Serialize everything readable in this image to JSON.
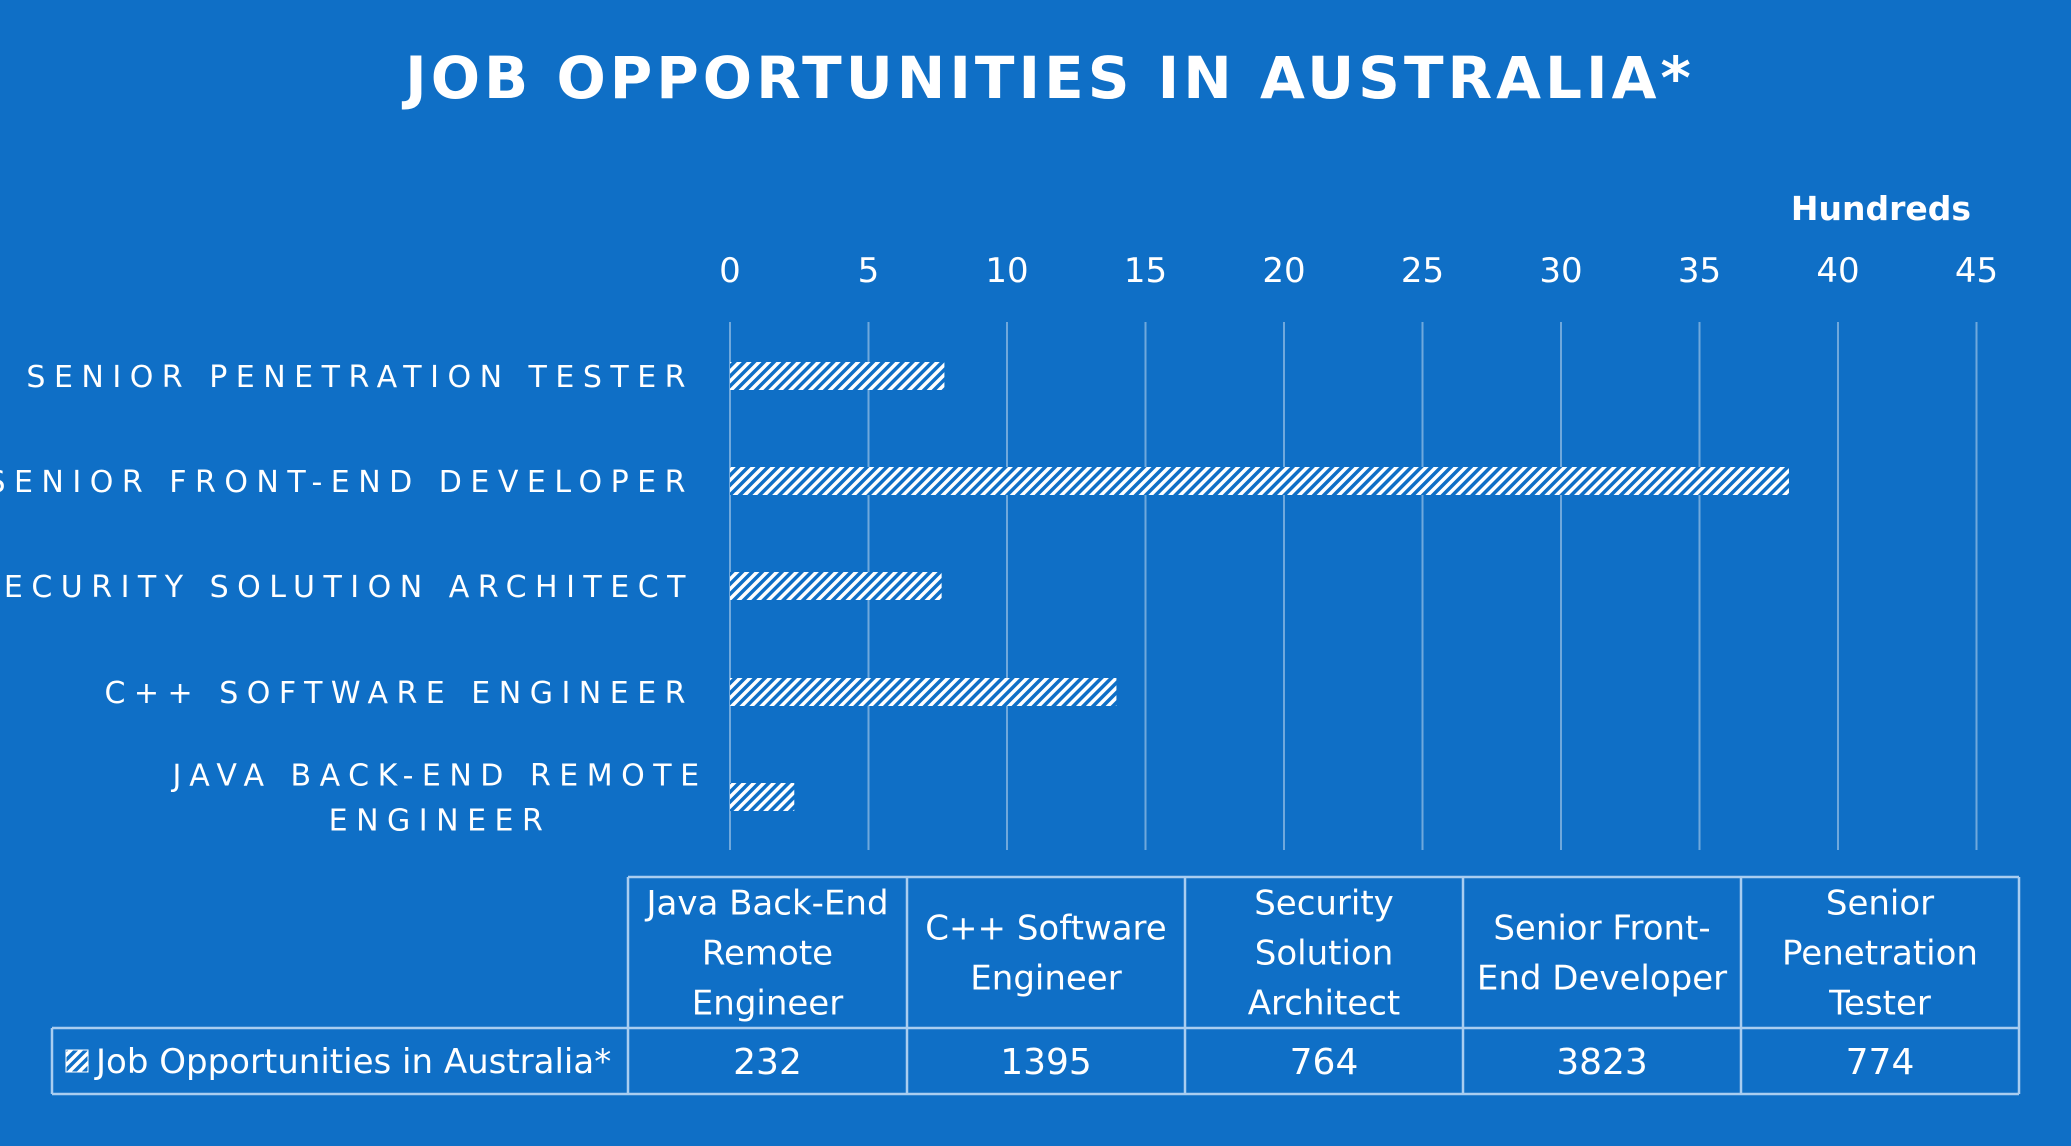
{
  "chart_data": {
    "type": "bar",
    "orientation": "horizontal",
    "title": "JOB OPPORTUNITIES IN AUSTRALIA*",
    "display_units": "Hundreds",
    "categories": [
      "Java Back-End Remote Engineer",
      "C++ Software Engineer",
      "Security Solution Architect",
      "Senior Front-End Developer",
      "Senior Penetration Tester"
    ],
    "category_axis_labels": [
      [
        "JAVA BACK-END REMOTE",
        "ENGINEER"
      ],
      [
        "C++ SOFTWARE ENGINEER"
      ],
      [
        "SECURITY SOLUTION ARCHITECT"
      ],
      [
        "SENIOR FRONT-END DEVELOPER"
      ],
      [
        "SENIOR PENETRATION TESTER"
      ]
    ],
    "series": [
      {
        "name": "Job Opportunities in Australia*",
        "values": [
          232,
          1395,
          764,
          3823,
          774
        ]
      }
    ],
    "value_axis": {
      "ticks": [
        "0",
        "5",
        "10",
        "15",
        "20",
        "25",
        "30",
        "35",
        "40",
        "45"
      ],
      "range_hundreds": [
        0,
        45
      ],
      "position": "top"
    },
    "data_table": {
      "headers": [
        [
          "Java Back-End",
          "Remote",
          "Engineer"
        ],
        [
          "C++ Software",
          "Engineer"
        ],
        [
          "Security",
          "Solution",
          "Architect"
        ],
        [
          "Senior Front-",
          "End Developer"
        ],
        [
          "Senior",
          "Penetration",
          "Tester"
        ]
      ],
      "row_label": "Job Opportunities in Australia*",
      "values": [
        "232",
        "1395",
        "764",
        "3823",
        "774"
      ]
    },
    "grid": true,
    "bar_pattern": "diagonal-hatch",
    "colors": {
      "background": "#0F6FC6",
      "foreground": "#FFFFFF",
      "gridline": "#6FA8DC",
      "table_border": "#A9CDF0"
    }
  }
}
